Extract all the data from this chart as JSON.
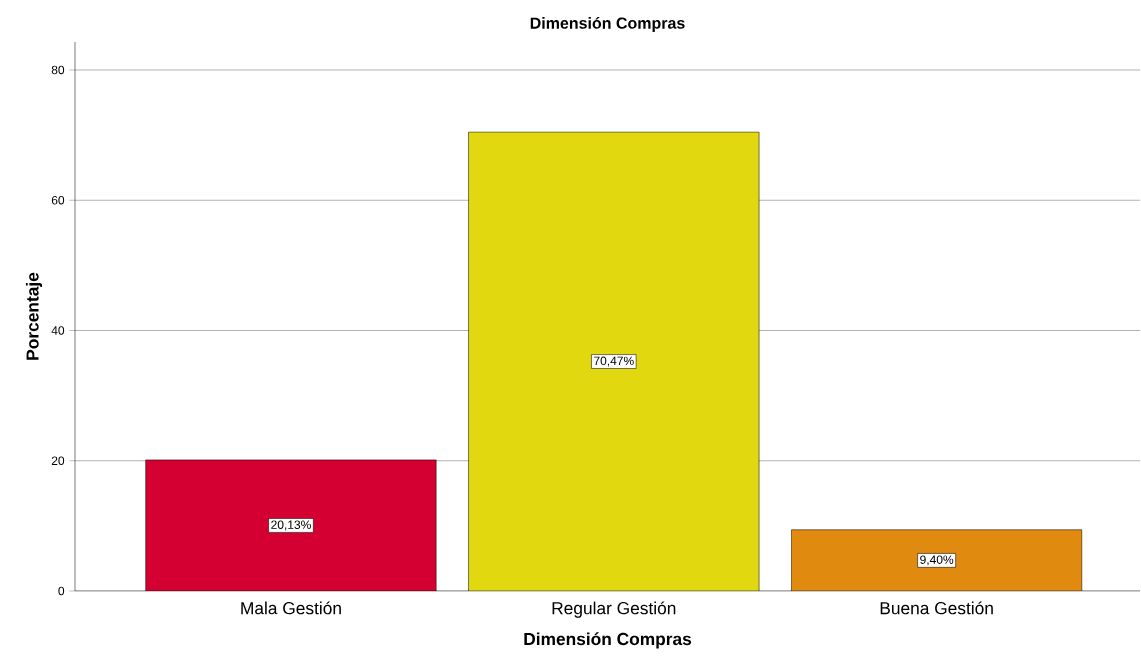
{
  "chart_data": {
    "type": "bar",
    "title": "Dimensión Compras",
    "xlabel": "Dimensión Compras",
    "ylabel": "Porcentaje",
    "categories": [
      "Mala Gestión",
      "Regular Gestión",
      "Buena Gestión"
    ],
    "values": [
      20.13,
      70.47,
      9.4
    ],
    "value_labels": [
      "20,13%",
      "70,47%",
      "9,40%"
    ],
    "colors": [
      "#d50032",
      "#e1d80f",
      "#e08a10"
    ],
    "ylim": [
      0,
      84.3
    ],
    "yticks": [
      0,
      20,
      40,
      60,
      80
    ],
    "grid": "y"
  }
}
